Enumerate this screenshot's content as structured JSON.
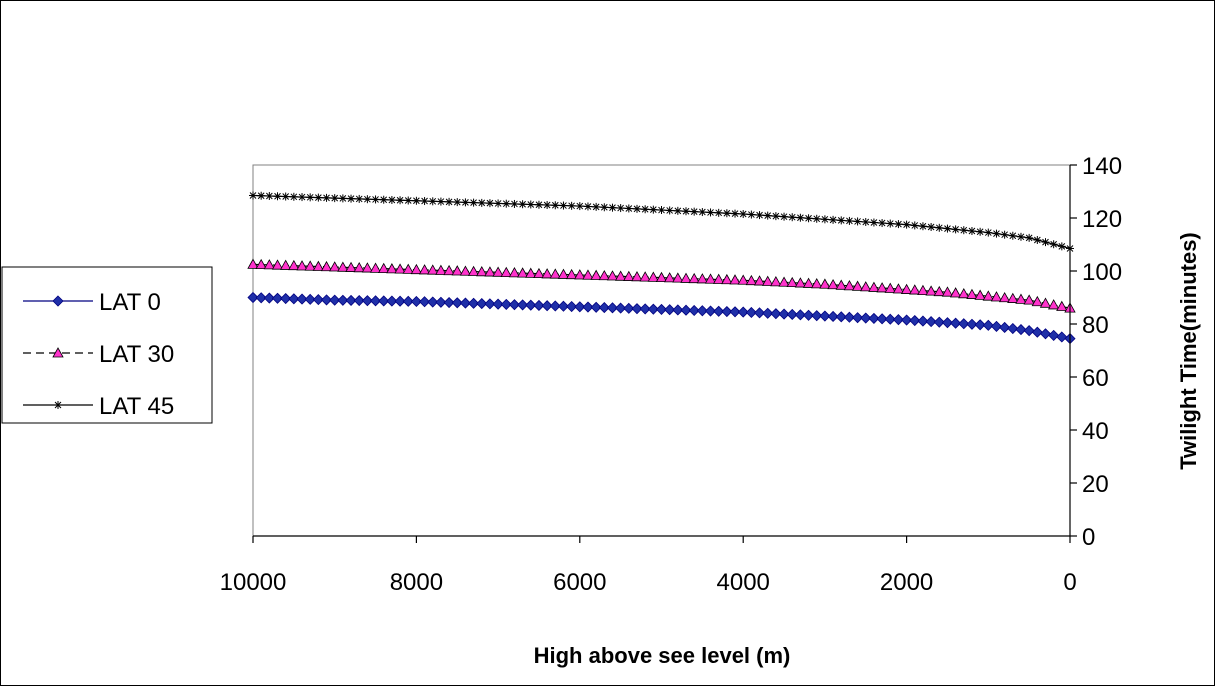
{
  "chart_data": {
    "type": "line",
    "title": "",
    "xlabel": "High above see level (m)",
    "ylabel": "Twilight  Time(minutes)",
    "xlim": [
      10000,
      0
    ],
    "ylim": [
      0,
      140
    ],
    "x_reversed": true,
    "y_axis_side": "right",
    "grid": false,
    "legend_position": "left",
    "x_ticks": [
      "10000",
      "8000",
      "6000",
      "4000",
      "2000",
      "0"
    ],
    "y_ticks": [
      "0",
      "20",
      "40",
      "60",
      "80",
      "100",
      "120",
      "140"
    ],
    "x": [
      10000,
      9000,
      8000,
      7000,
      6000,
      5000,
      4000,
      3000,
      2000,
      1500,
      1000,
      500,
      0
    ],
    "series": [
      {
        "name": "LAT 0",
        "color": "#000080",
        "fill": "#1f2fa8",
        "marker": "diamond",
        "line": "solid",
        "values": [
          90,
          89,
          88.5,
          87.5,
          86.5,
          85.5,
          84.5,
          83,
          81.5,
          80.5,
          79.5,
          77.5,
          74.5
        ]
      },
      {
        "name": "LAT 30",
        "color": "#000000",
        "fill": "#ff33cc",
        "marker": "triangle",
        "line": "dashed",
        "values": [
          102.5,
          101.5,
          100.5,
          99.5,
          98.5,
          97.5,
          96.5,
          95,
          93,
          92,
          90.5,
          89,
          86
        ]
      },
      {
        "name": "LAT 45",
        "color": "#000000",
        "fill": "#000000",
        "marker": "asterisk",
        "line": "solid",
        "values": [
          128.5,
          127.5,
          126.5,
          125.5,
          124.5,
          123,
          121.5,
          119.5,
          117.5,
          116,
          114.5,
          112.5,
          108.5
        ]
      }
    ]
  }
}
